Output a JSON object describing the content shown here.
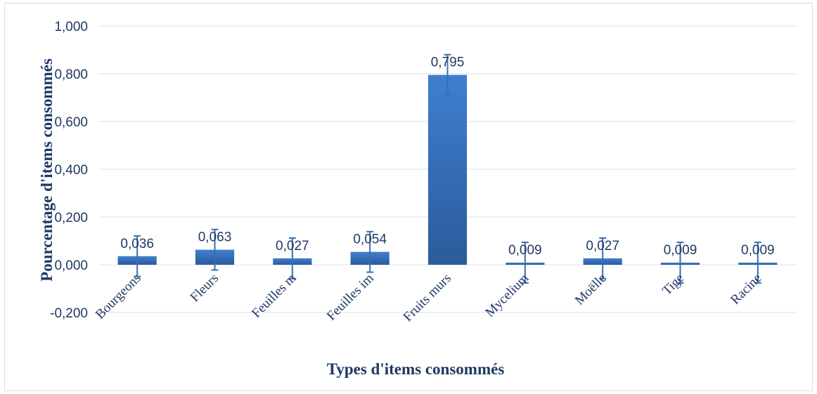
{
  "chart_data": {
    "type": "bar",
    "title": "",
    "xlabel": "Types d'items consommés",
    "ylabel": "Pourcentage d'items consommés",
    "categories": [
      "Bourgeons",
      "Fleurs",
      "Feuilles m",
      "Feuilles im",
      "Fruits murs",
      "Mycelium",
      "Moëlle",
      "Tige",
      "Racine"
    ],
    "values": [
      0.036,
      0.063,
      0.027,
      0.054,
      0.795,
      0.009,
      0.027,
      0.009,
      0.009
    ],
    "data_labels": [
      "0,036",
      "0,063",
      "0,027",
      "0,054",
      "0,795",
      "0,009",
      "0,027",
      "0,009",
      "0,009"
    ],
    "error": [
      0.085,
      0.085,
      0.085,
      0.085,
      0.085,
      0.085,
      0.085,
      0.085,
      0.085
    ],
    "ylim": [
      -0.2,
      1.0
    ],
    "yticks": [
      -0.2,
      0,
      0.2,
      0.4,
      0.6,
      0.8,
      1.0
    ],
    "ytick_labels": [
      "-0,200",
      "0,000",
      "0,200",
      "0,400",
      "0,600",
      "0,800",
      "1,000"
    ],
    "grid": true,
    "legend": "none",
    "colors": {
      "bar_top": "#3f7fce",
      "bar_bottom": "#2b5b9c",
      "error_bar": "#3a6fb0",
      "gridline": "#d9e2ec",
      "text": "#1f3864"
    }
  }
}
